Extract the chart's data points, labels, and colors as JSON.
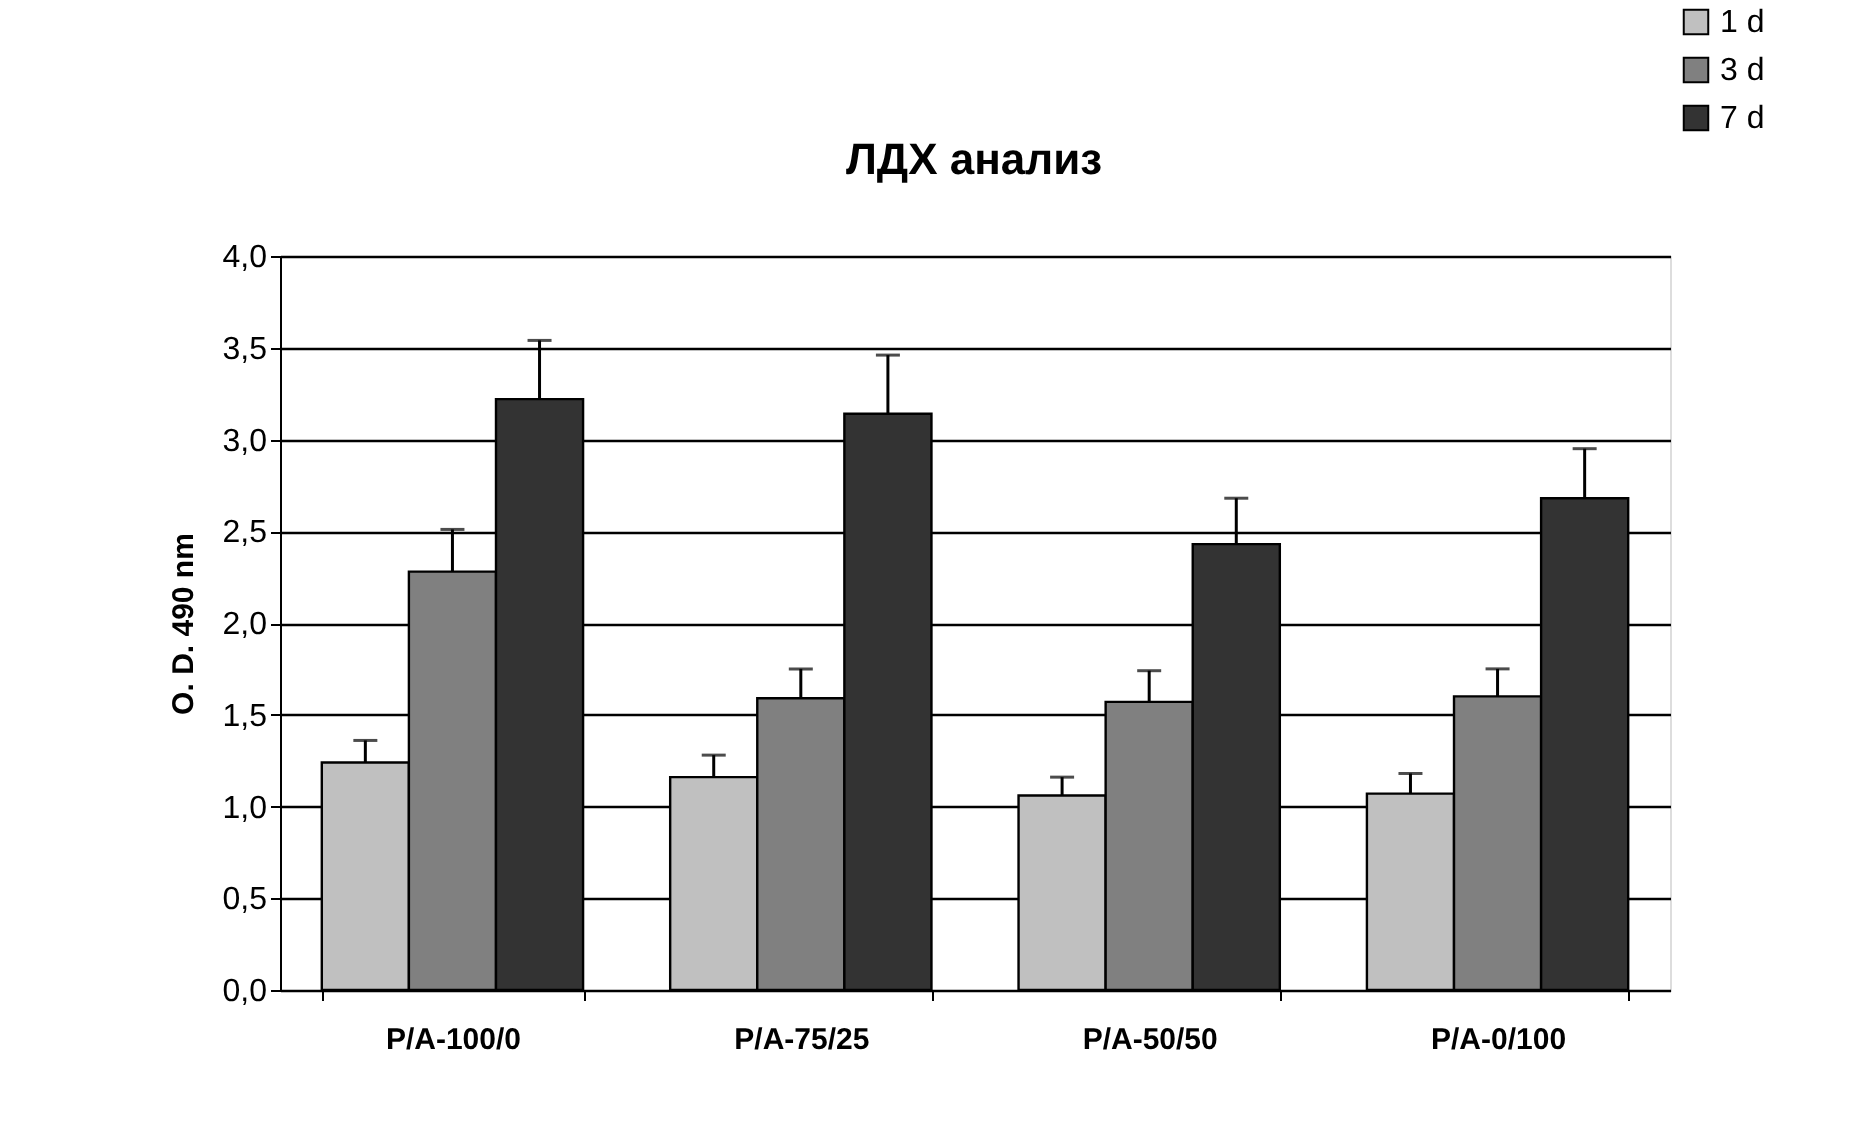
{
  "chart_data": {
    "type": "bar",
    "title": "ЛДХ анализ",
    "ylabel": "O. D. 490 nm",
    "categories": [
      "P/A-100/0",
      "P/A-75/25",
      "P/A-50/50",
      "P/A-0/100"
    ],
    "series": [
      {
        "name": "1 d",
        "color": "#c0c0c0",
        "values": [
          1.24,
          1.16,
          1.06,
          1.07
        ],
        "errors": [
          [
            1.24,
            1.36
          ],
          [
            1.16,
            1.28
          ],
          [
            1.06,
            1.16
          ],
          [
            1.07,
            1.18
          ]
        ]
      },
      {
        "name": "3 d",
        "color": "#808080",
        "values": [
          2.28,
          1.59,
          1.57,
          1.6
        ],
        "errors": [
          [
            2.28,
            2.51
          ],
          [
            1.59,
            1.75
          ],
          [
            1.57,
            1.74
          ],
          [
            1.6,
            1.75
          ]
        ]
      },
      {
        "name": "7 d",
        "color": "#333333",
        "values": [
          3.22,
          3.14,
          2.43,
          2.68
        ],
        "errors": [
          [
            3.22,
            3.54
          ],
          [
            3.14,
            3.46
          ],
          [
            2.43,
            2.68
          ],
          [
            2.68,
            2.95
          ]
        ]
      }
    ],
    "ylim": [
      0,
      4
    ],
    "yticks": [
      {
        "value": 0,
        "label": "0,0"
      },
      {
        "value": 0.5,
        "label": "0,5"
      },
      {
        "value": 1,
        "label": "1,0"
      },
      {
        "value": 1.5,
        "label": "1,5"
      },
      {
        "value": 2,
        "label": "2,0"
      },
      {
        "value": 2.5,
        "label": "2,5"
      },
      {
        "value": 3,
        "label": "3,0"
      },
      {
        "value": 3.5,
        "label": "3,5"
      },
      {
        "value": 4,
        "label": "4,0"
      }
    ],
    "grid": "y",
    "legend": "top right"
  }
}
